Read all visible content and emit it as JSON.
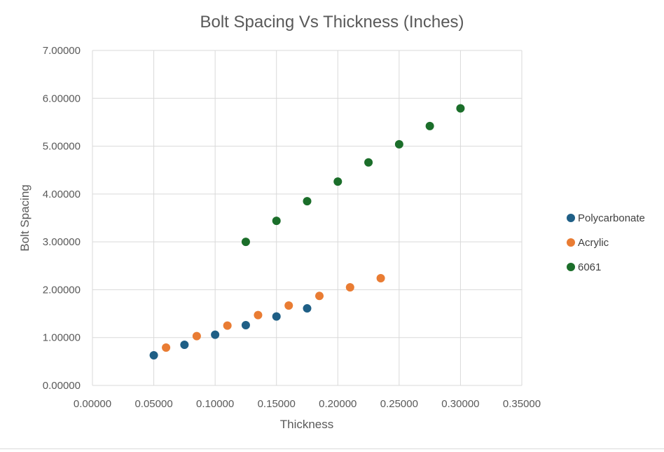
{
  "chart_data": {
    "type": "scatter",
    "title": "Bolt Spacing Vs Thickness (Inches)",
    "xlabel": "Thickness",
    "ylabel": "Bolt Spacing",
    "xlim": [
      0,
      0.35
    ],
    "ylim": [
      0,
      7
    ],
    "x_ticks": [
      "0.00000",
      "0.05000",
      "0.10000",
      "0.15000",
      "0.20000",
      "0.25000",
      "0.30000",
      "0.35000"
    ],
    "y_ticks": [
      "0.00000",
      "1.00000",
      "2.00000",
      "3.00000",
      "4.00000",
      "5.00000",
      "6.00000",
      "7.00000"
    ],
    "grid": true,
    "legend_position": "right",
    "series": [
      {
        "name": "Polycarbonate",
        "color": "#1f5f86",
        "points": [
          [
            0.05,
            0.63
          ],
          [
            0.075,
            0.85
          ],
          [
            0.1,
            1.06
          ],
          [
            0.125,
            1.26
          ],
          [
            0.15,
            1.44
          ],
          [
            0.175,
            1.61
          ]
        ]
      },
      {
        "name": "Acrylic",
        "color": "#e97c33",
        "points": [
          [
            0.06,
            0.79
          ],
          [
            0.085,
            1.03
          ],
          [
            0.11,
            1.25
          ],
          [
            0.135,
            1.47
          ],
          [
            0.16,
            1.67
          ],
          [
            0.185,
            1.87
          ],
          [
            0.21,
            2.05
          ],
          [
            0.235,
            2.24
          ]
        ]
      },
      {
        "name": "6061",
        "color": "#1b6e2a",
        "points": [
          [
            0.125,
            3.0
          ],
          [
            0.15,
            3.44
          ],
          [
            0.175,
            3.85
          ],
          [
            0.2,
            4.26
          ],
          [
            0.225,
            4.66
          ],
          [
            0.25,
            5.04
          ],
          [
            0.275,
            5.42
          ],
          [
            0.3,
            5.79
          ]
        ]
      }
    ]
  }
}
